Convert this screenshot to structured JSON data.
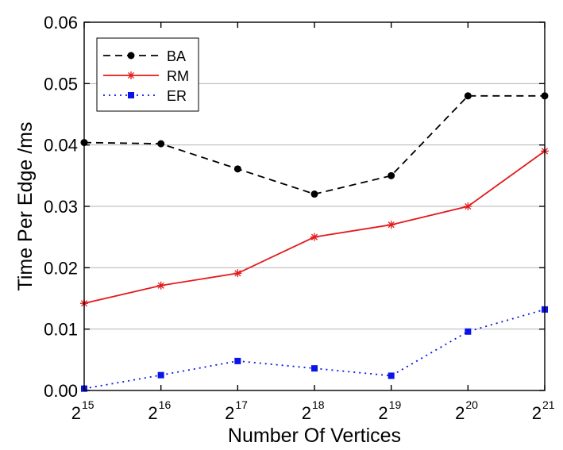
{
  "chart_data": {
    "type": "line",
    "xlabel": "Number Of Vertices",
    "ylabel": "Time Per Edge /ms",
    "x_base": "2",
    "x_exponents": [
      "15",
      "16",
      "17",
      "18",
      "19",
      "20",
      "21"
    ],
    "x": [
      15,
      16,
      17,
      18,
      19,
      20,
      21
    ],
    "xlim": [
      15,
      21
    ],
    "ylim": [
      0,
      0.06
    ],
    "yticks": [
      "0.00",
      "0.01",
      "0.02",
      "0.03",
      "0.04",
      "0.05",
      "0.06"
    ],
    "ytick_values": [
      0,
      0.01,
      0.02,
      0.03,
      0.04,
      0.05,
      0.06
    ],
    "grid": "horizontal",
    "legend_position": "top-left",
    "series": [
      {
        "name": "BA",
        "values": [
          0.0404,
          0.0402,
          0.0361,
          0.032,
          0.035,
          0.048,
          0.048
        ],
        "color": "#000000",
        "dash": "dashed",
        "marker": "circle"
      },
      {
        "name": "RM",
        "values": [
          0.0142,
          0.0171,
          0.0191,
          0.025,
          0.027,
          0.03,
          0.039
        ],
        "color": "#e41a1c",
        "dash": "solid",
        "marker": "asterisk"
      },
      {
        "name": "ER",
        "values": [
          0.0003,
          0.0025,
          0.0048,
          0.0036,
          0.0024,
          0.0096,
          0.0132
        ],
        "color": "#0a14e6",
        "dash": "dotted",
        "marker": "square"
      }
    ]
  }
}
